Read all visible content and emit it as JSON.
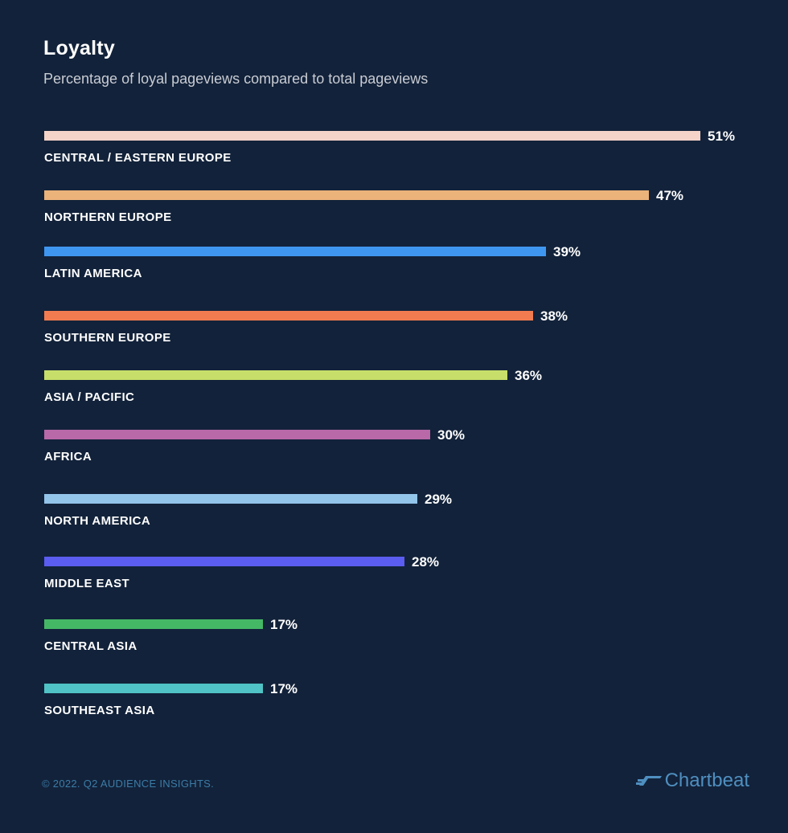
{
  "chart_data": {
    "type": "bar",
    "orientation": "horizontal",
    "title": "Loyalty",
    "subtitle": "Percentage of loyal pageviews compared to total pageviews",
    "value_suffix": "%",
    "categories": [
      "CENTRAL / EASTERN EUROPE",
      "NORTHERN EUROPE",
      "LATIN AMERICA",
      "SOUTHERN EUROPE",
      "ASIA / PACIFIC",
      "AFRICA",
      "NORTH AMERICA",
      "MIDDLE EAST",
      "CENTRAL ASIA",
      "SOUTHEAST ASIA"
    ],
    "values": [
      51,
      47,
      39,
      38,
      36,
      30,
      29,
      28,
      17,
      17
    ],
    "value_labels": [
      "51%",
      "47%",
      "39%",
      "38%",
      "36%",
      "30%",
      "29%",
      "28%",
      "17%",
      "17%"
    ],
    "colors": [
      "#f6d3c9",
      "#ebb27a",
      "#3f96f0",
      "#f27c50",
      "#c7df6a",
      "#b968a8",
      "#93c4ea",
      "#5b5cf0",
      "#45b865",
      "#4fc3c5"
    ],
    "xlim": [
      0,
      51
    ]
  },
  "footer": {
    "copyright": "© 2022. Q2 AUDIENCE INSIGHTS.",
    "brand": "Chartbeat"
  },
  "icons": {
    "brand_logo": "chartbeat-logo-icon"
  }
}
